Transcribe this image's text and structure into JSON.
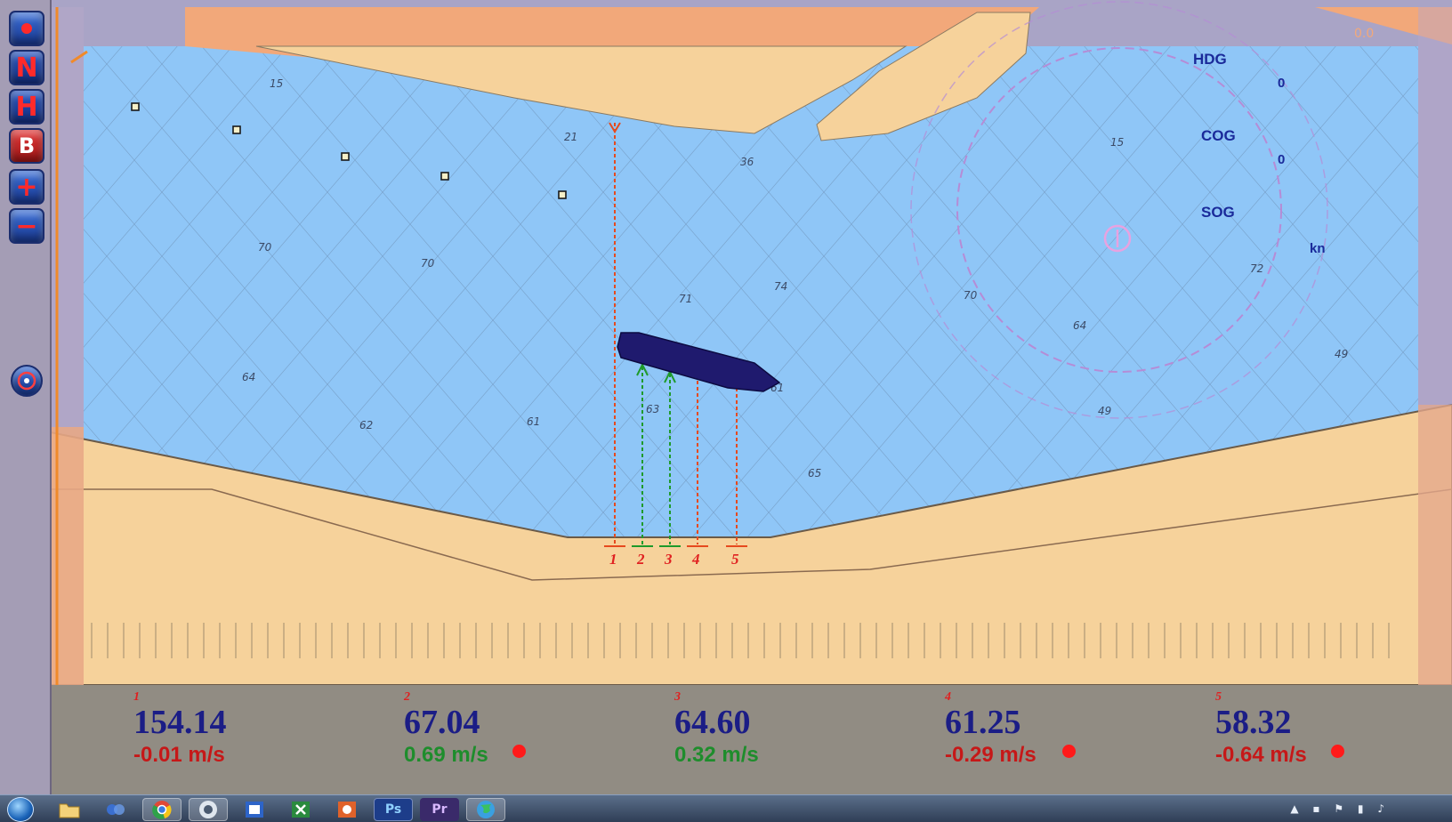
{
  "toolbar": {
    "buttons": [
      {
        "name": "record-button",
        "icon": "record-dot-icon",
        "label": ""
      },
      {
        "name": "north-up-button",
        "icon": "north-up-icon",
        "label": "N"
      },
      {
        "name": "head-up-button",
        "icon": "head-up-icon",
        "label": "H"
      },
      {
        "name": "ship-button",
        "icon": "ship-icon",
        "label": "B"
      },
      {
        "name": "zoom-in-button",
        "icon": "zoom-in-icon",
        "label": "+"
      },
      {
        "name": "zoom-out-button",
        "icon": "zoom-out-icon",
        "label": "−"
      },
      {
        "name": "compass-button",
        "icon": "compass-icon",
        "label": ""
      }
    ]
  },
  "navigation": {
    "hdg_label": "HDG",
    "hdg_value": "0",
    "cog_label": "COG",
    "cog_value": "0",
    "sog_label": "SOG",
    "sog_unit": "kn"
  },
  "depth_soundings": [
    "15",
    "21",
    "36",
    "15",
    "70",
    "70",
    "71",
    "74",
    "70",
    "72",
    "64",
    "64",
    "62",
    "61",
    "63",
    "61",
    "65",
    "49",
    "49"
  ],
  "beams": [
    "1",
    "2",
    "3",
    "4",
    "5"
  ],
  "readout": {
    "gauges": [
      {
        "index": "1",
        "distance": "154.14",
        "speed": "-0.01 m/s",
        "trend": "away",
        "alarm": false
      },
      {
        "index": "2",
        "distance": "67.04",
        "speed": "0.69 m/s",
        "trend": "approach",
        "alarm": true
      },
      {
        "index": "3",
        "distance": "64.60",
        "speed": "0.32 m/s",
        "trend": "approach",
        "alarm": false
      },
      {
        "index": "4",
        "distance": "61.25",
        "speed": "-0.29 m/s",
        "trend": "away",
        "alarm": true
      },
      {
        "index": "5",
        "distance": "58.32",
        "speed": "-0.64 m/s",
        "trend": "away",
        "alarm": true
      }
    ]
  },
  "taskbar": {
    "apps": [
      {
        "name": "explorer",
        "icon": "folder-icon"
      },
      {
        "name": "network",
        "icon": "network-icon"
      },
      {
        "name": "chrome",
        "icon": "chrome-icon"
      },
      {
        "name": "media",
        "icon": "media-icon"
      },
      {
        "name": "outlook",
        "icon": "outlook-icon"
      },
      {
        "name": "excel",
        "icon": "excel-icon"
      },
      {
        "name": "powerpoint",
        "icon": "powerpoint-icon"
      },
      {
        "name": "photoshop",
        "icon": "photoshop-icon",
        "label": "Ps"
      },
      {
        "name": "premiere",
        "icon": "premiere-icon",
        "label": "Pr"
      },
      {
        "name": "globe-app",
        "icon": "globe-icon"
      }
    ]
  },
  "colors": {
    "water": "#8fc6f7",
    "land": "#f6d29b",
    "land_dark": "#f2a87a",
    "ship": "#1f1a6e",
    "beam_red": "#e64a1e",
    "beam_green": "#1e9a2a"
  }
}
